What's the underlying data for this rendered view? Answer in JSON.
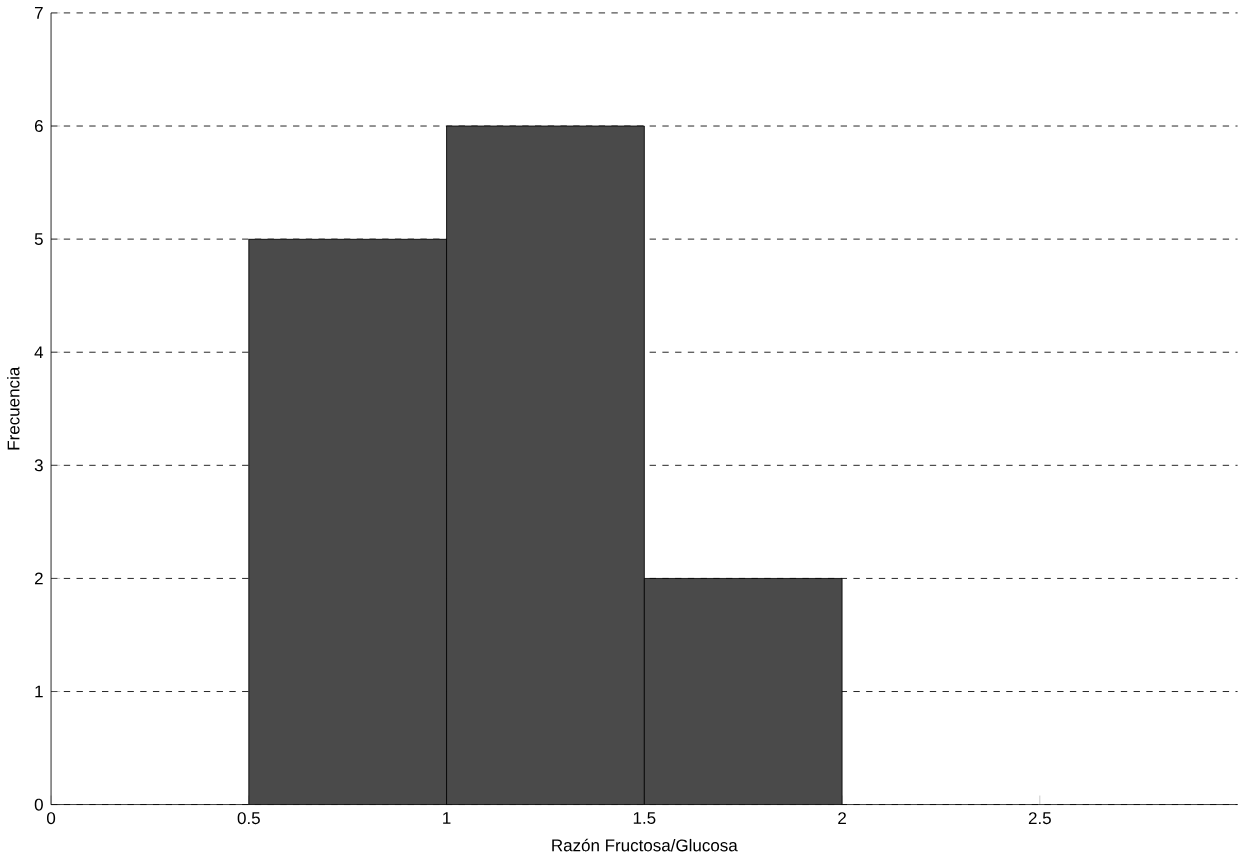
{
  "chart_data": {
    "type": "histogram",
    "xlabel": "Razón Fructosa/Glucosa",
    "ylabel": "Frecuencia",
    "bins": [
      0.5,
      1,
      1.5,
      2
    ],
    "values": [
      5,
      6,
      2
    ],
    "color": "#4a4a4a",
    "xlim": [
      0,
      3
    ],
    "xticks": [
      0,
      0.5,
      1,
      1.5,
      2,
      2.5
    ],
    "ylim": [
      0,
      7
    ],
    "yticks": [
      0,
      1,
      2,
      3,
      4,
      5,
      6,
      7
    ],
    "grid": "y"
  }
}
